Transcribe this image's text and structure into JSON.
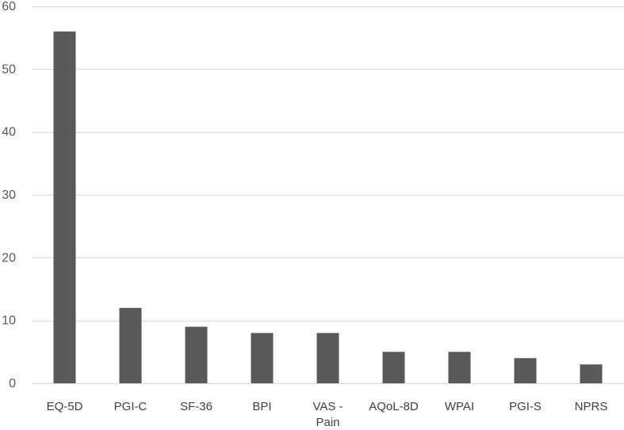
{
  "chart_data": {
    "type": "bar",
    "title": "",
    "xlabel": "",
    "ylabel": "",
    "categories": [
      "EQ-5D",
      "PGI-C",
      "SF-36",
      "BPI",
      "VAS - Pain",
      "AQoL-8D",
      "WPAI",
      "PGI-S",
      "NPRS"
    ],
    "category_lines": [
      [
        "EQ-5D"
      ],
      [
        "PGI-C"
      ],
      [
        "SF-36"
      ],
      [
        "BPI"
      ],
      [
        "VAS -",
        "Pain"
      ],
      [
        "AQoL-8D"
      ],
      [
        "WPAI"
      ],
      [
        "PGI-S"
      ],
      [
        "NPRS"
      ]
    ],
    "series": [
      {
        "values": [
          56,
          12,
          9,
          8,
          8,
          5,
          5,
          4,
          3
        ]
      }
    ],
    "ylim": [
      0,
      60
    ],
    "yticks": [
      0,
      10,
      20,
      30,
      40,
      50,
      60
    ],
    "grid": true,
    "legend": "none",
    "colors": {
      "bar": "#595959",
      "grid": "#d9d9d9",
      "tick_text": "#595959",
      "category_text": "#404040"
    }
  }
}
